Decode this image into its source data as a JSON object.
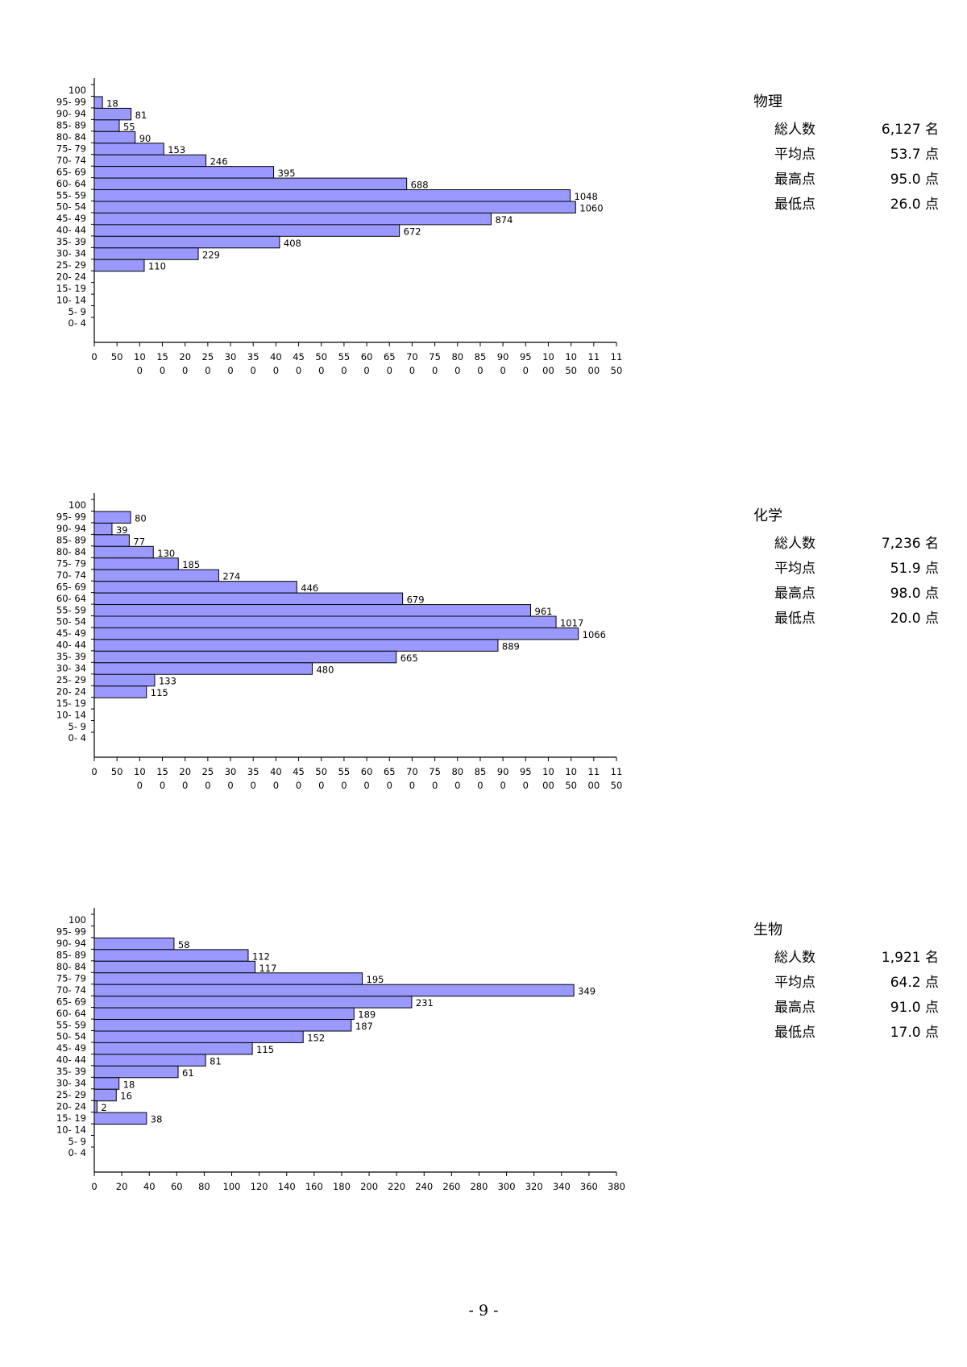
{
  "charts": [
    {
      "subject": "物理",
      "stats": [
        {
          "label": "総人数",
          "value": "6,127 名"
        },
        {
          "label": "平均点",
          "value": "53.7 点"
        },
        {
          "label": "最高点",
          "value": "95.0 点"
        },
        {
          "label": "最低点",
          "value": "26.0 点"
        }
      ]
    },
    {
      "subject": "化学",
      "stats": [
        {
          "label": "総人数",
          "value": "7,236 名"
        },
        {
          "label": "平均点",
          "value": "51.9 点"
        },
        {
          "label": "最高点",
          "value": "98.0 点"
        },
        {
          "label": "最低点",
          "value": "20.0 点"
        }
      ]
    },
    {
      "subject": "生物",
      "stats": [
        {
          "label": "総人数",
          "value": "1,921 名"
        },
        {
          "label": "平均点",
          "value": "64.2 点"
        },
        {
          "label": "最高点",
          "value": "91.0 点"
        },
        {
          "label": "最低点",
          "value": "17.0 点"
        }
      ]
    }
  ],
  "chart_data": [
    {
      "type": "bar",
      "orientation": "horizontal",
      "title": "物理",
      "bar_color": "#9999ff",
      "categories": [
        "100",
        "95- 99",
        "90- 94",
        "85- 89",
        "80- 84",
        "75- 79",
        "70- 74",
        "65- 69",
        "60- 64",
        "55- 59",
        "50- 54",
        "45- 49",
        "40- 44",
        "35- 39",
        "30- 34",
        "25- 29",
        "20- 24",
        "15- 19",
        "10- 14",
        "5- 9",
        "0- 4"
      ],
      "values": [
        0,
        18,
        81,
        55,
        90,
        153,
        246,
        395,
        688,
        1048,
        1060,
        874,
        672,
        408,
        229,
        110,
        0,
        0,
        0,
        0,
        0
      ],
      "xlim": [
        0,
        1150
      ],
      "x_ticks": [
        [
          "0",
          ""
        ],
        [
          "50",
          ""
        ],
        [
          "10",
          "0"
        ],
        [
          "15",
          "0"
        ],
        [
          "20",
          "0"
        ],
        [
          "25",
          "0"
        ],
        [
          "30",
          "0"
        ],
        [
          "35",
          "0"
        ],
        [
          "40",
          "0"
        ],
        [
          "45",
          "0"
        ],
        [
          "50",
          "0"
        ],
        [
          "55",
          "0"
        ],
        [
          "60",
          "0"
        ],
        [
          "65",
          "0"
        ],
        [
          "70",
          "0"
        ],
        [
          "75",
          "0"
        ],
        [
          "80",
          "0"
        ],
        [
          "85",
          "0"
        ],
        [
          "90",
          "0"
        ],
        [
          "95",
          "0"
        ],
        [
          "10",
          "00"
        ],
        [
          "10",
          "50"
        ],
        [
          "11",
          "00"
        ],
        [
          "11",
          "50"
        ]
      ]
    },
    {
      "type": "bar",
      "orientation": "horizontal",
      "title": "化学",
      "bar_color": "#9999ff",
      "categories": [
        "100",
        "95- 99",
        "90- 94",
        "85- 89",
        "80- 84",
        "75- 79",
        "70- 74",
        "65- 69",
        "60- 64",
        "55- 59",
        "50- 54",
        "45- 49",
        "40- 44",
        "35- 39",
        "30- 34",
        "25- 29",
        "20- 24",
        "15- 19",
        "10- 14",
        "5- 9",
        "0- 4"
      ],
      "values": [
        0,
        80,
        39,
        77,
        130,
        185,
        274,
        446,
        679,
        961,
        1017,
        1066,
        889,
        665,
        480,
        133,
        115,
        0,
        0,
        0,
        0
      ],
      "xlim": [
        0,
        1150
      ],
      "x_ticks": [
        [
          "0",
          ""
        ],
        [
          "50",
          ""
        ],
        [
          "10",
          "0"
        ],
        [
          "15",
          "0"
        ],
        [
          "20",
          "0"
        ],
        [
          "25",
          "0"
        ],
        [
          "30",
          "0"
        ],
        [
          "35",
          "0"
        ],
        [
          "40",
          "0"
        ],
        [
          "45",
          "0"
        ],
        [
          "50",
          "0"
        ],
        [
          "55",
          "0"
        ],
        [
          "60",
          "0"
        ],
        [
          "65",
          "0"
        ],
        [
          "70",
          "0"
        ],
        [
          "75",
          "0"
        ],
        [
          "80",
          "0"
        ],
        [
          "85",
          "0"
        ],
        [
          "90",
          "0"
        ],
        [
          "95",
          "0"
        ],
        [
          "10",
          "00"
        ],
        [
          "10",
          "50"
        ],
        [
          "11",
          "00"
        ],
        [
          "11",
          "50"
        ]
      ]
    },
    {
      "type": "bar",
      "orientation": "horizontal",
      "title": "生物",
      "bar_color": "#9999ff",
      "categories": [
        "100",
        "95- 99",
        "90- 94",
        "85- 89",
        "80- 84",
        "75- 79",
        "70- 74",
        "65- 69",
        "60- 64",
        "55- 59",
        "50- 54",
        "45- 49",
        "40- 44",
        "35- 39",
        "30- 34",
        "25- 29",
        "20- 24",
        "15- 19",
        "10- 14",
        "5- 9",
        "0- 4"
      ],
      "values": [
        0,
        0,
        58,
        112,
        117,
        195,
        349,
        231,
        189,
        187,
        152,
        115,
        81,
        61,
        18,
        16,
        2,
        38,
        0,
        0,
        0
      ],
      "xlim": [
        0,
        380
      ],
      "x_ticks": [
        [
          "0",
          ""
        ],
        [
          "20",
          ""
        ],
        [
          "40",
          ""
        ],
        [
          "60",
          ""
        ],
        [
          "80",
          ""
        ],
        [
          "100",
          ""
        ],
        [
          "120",
          ""
        ],
        [
          "140",
          ""
        ],
        [
          "160",
          ""
        ],
        [
          "180",
          ""
        ],
        [
          "200",
          ""
        ],
        [
          "220",
          ""
        ],
        [
          "240",
          ""
        ],
        [
          "260",
          ""
        ],
        [
          "280",
          ""
        ],
        [
          "300",
          ""
        ],
        [
          "320",
          ""
        ],
        [
          "340",
          ""
        ],
        [
          "360",
          ""
        ],
        [
          "380",
          ""
        ]
      ]
    }
  ],
  "footer": {
    "page_number": "- 9 -"
  }
}
